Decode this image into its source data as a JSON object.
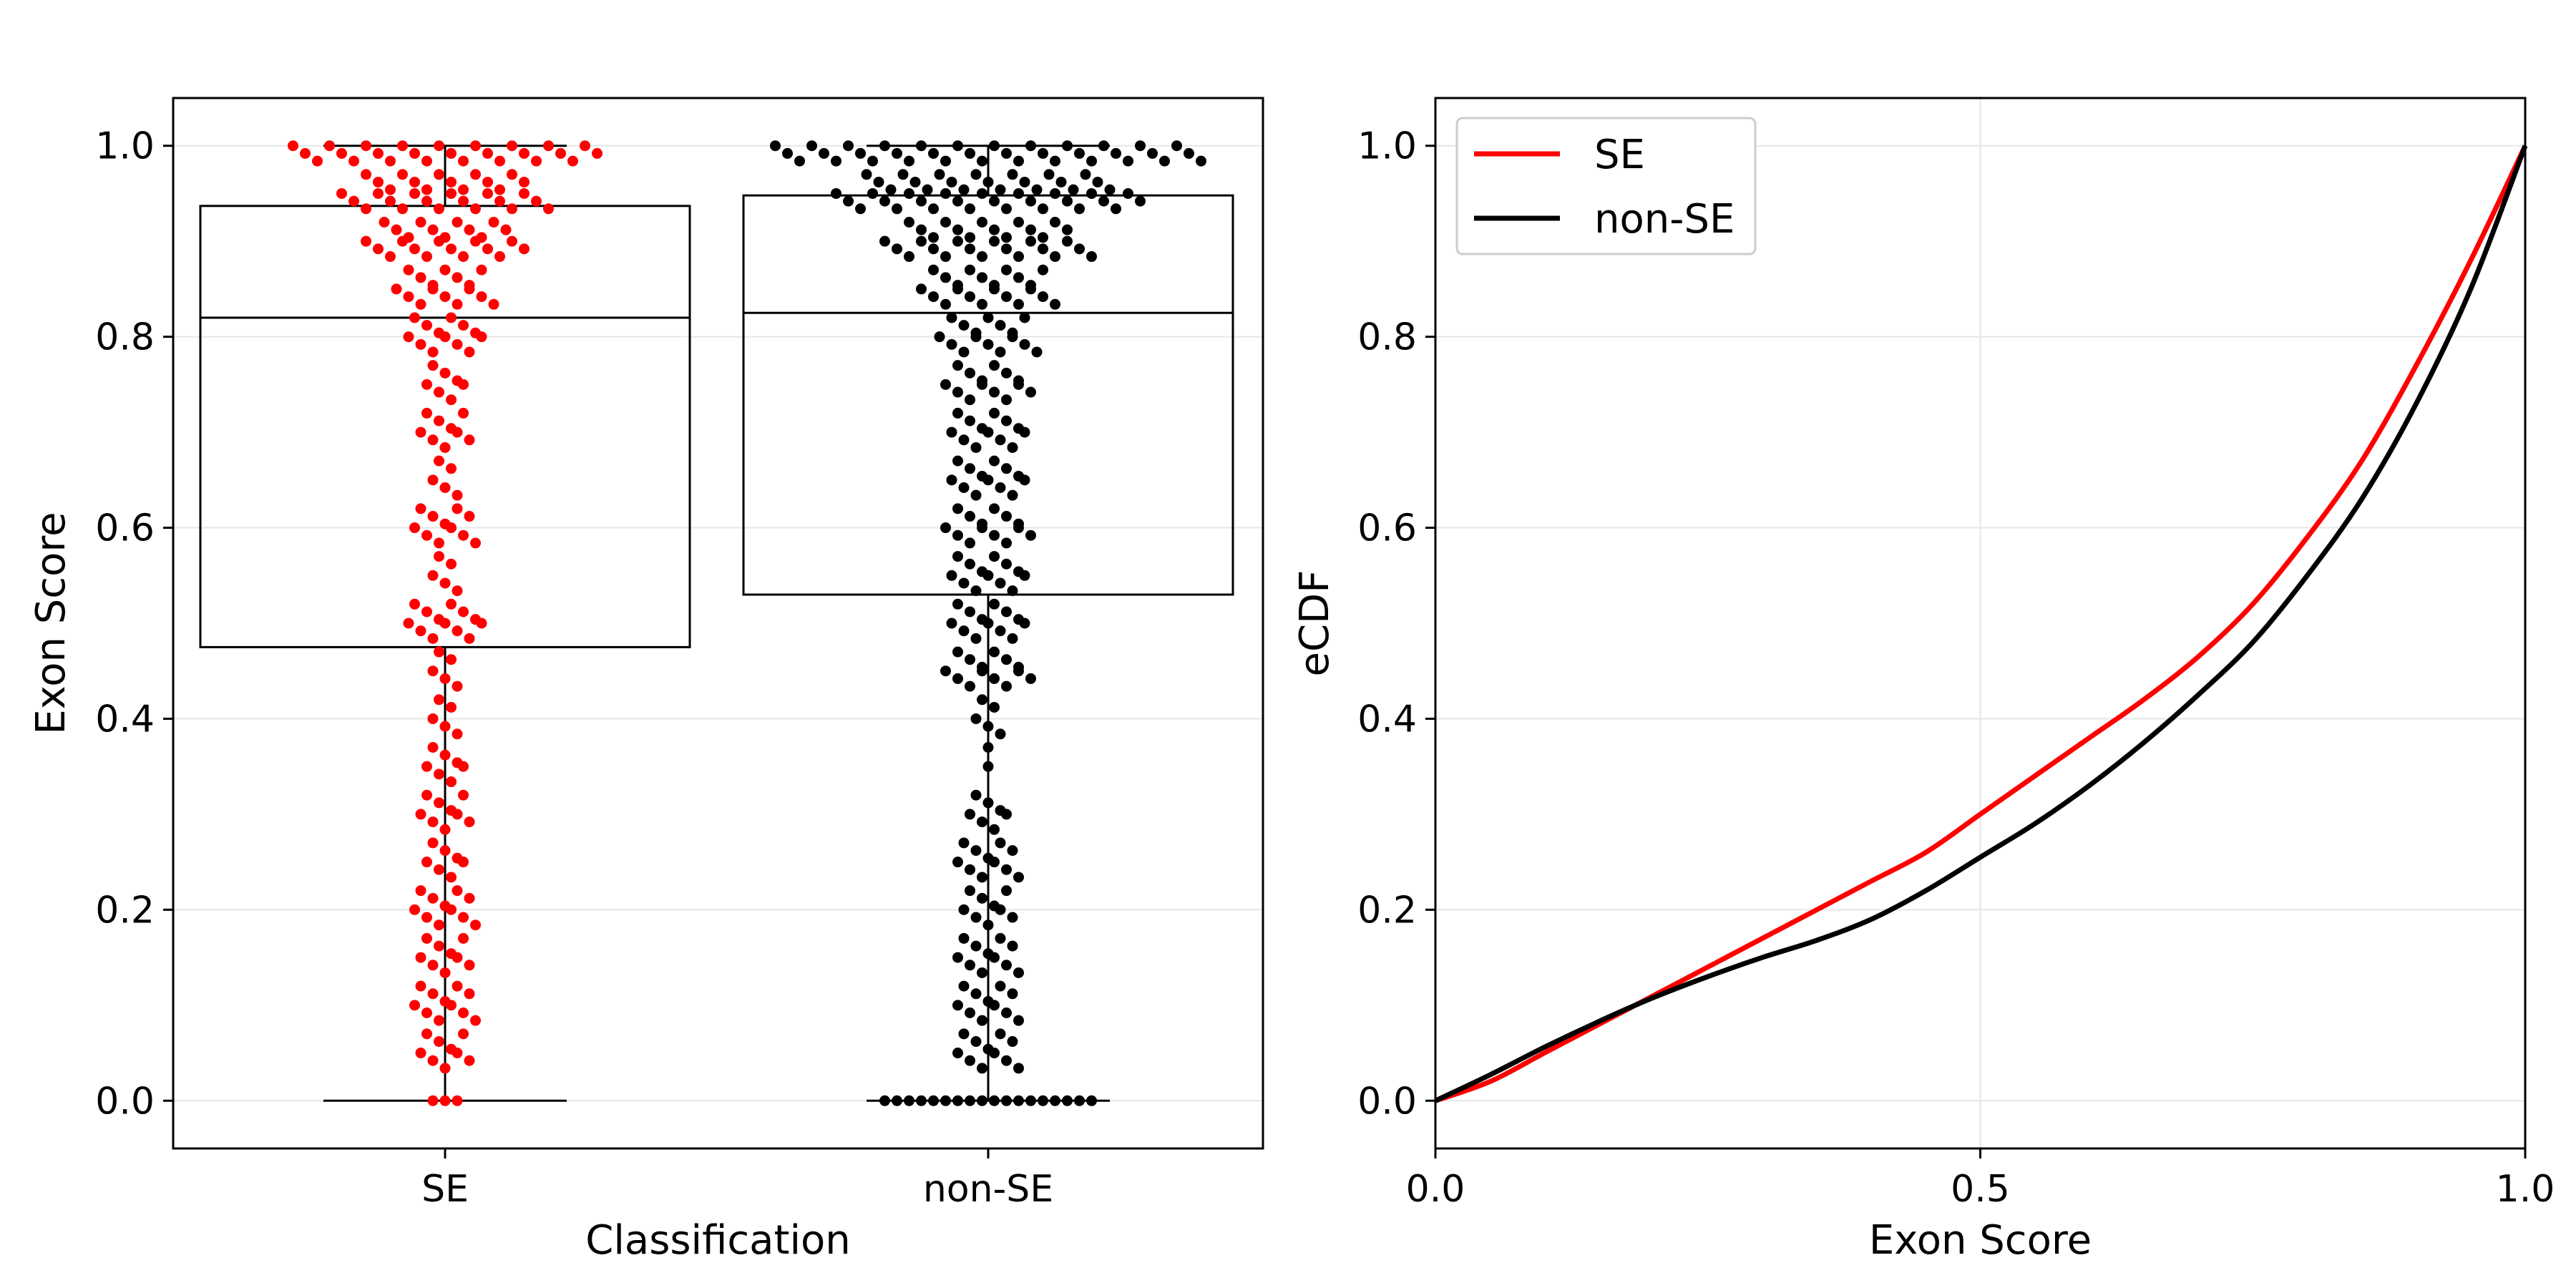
{
  "chart_data": [
    {
      "type": "box+swarm",
      "title": "",
      "xlabel": "Classification",
      "ylabel": "Exon Score",
      "categories": [
        "SE",
        "non-SE"
      ],
      "ylim": [
        -0.05,
        1.05
      ],
      "yticks": [
        "0.0",
        "0.2",
        "0.4",
        "0.6",
        "0.8",
        "1.0"
      ],
      "grid": true,
      "colors": {
        "SE": "#ff0000",
        "non-SE": "#000000"
      },
      "boxes": [
        {
          "name": "SE",
          "min": 0.0,
          "q1": 0.475,
          "median": 0.82,
          "q3": 0.937,
          "max": 1.0
        },
        {
          "name": "non-SE",
          "min": 0.0,
          "q1": 0.53,
          "median": 0.825,
          "q3": 0.948,
          "max": 1.0
        }
      ],
      "swarm_density": {
        "y_levels": [
          0.0,
          0.05,
          0.1,
          0.15,
          0.2,
          0.25,
          0.3,
          0.35,
          0.4,
          0.45,
          0.5,
          0.55,
          0.6,
          0.65,
          0.7,
          0.75,
          0.8,
          0.85,
          0.9,
          0.95,
          1.0
        ],
        "SE_counts": [
          3,
          5,
          6,
          5,
          6,
          4,
          5,
          4,
          3,
          3,
          7,
          3,
          6,
          3,
          5,
          4,
          7,
          9,
          14,
          18,
          26
        ],
        "non-SE_counts": [
          18,
          6,
          6,
          6,
          5,
          6,
          4,
          1,
          3,
          8,
          7,
          7,
          8,
          7,
          7,
          8,
          9,
          12,
          18,
          26,
          36
        ]
      }
    },
    {
      "type": "line",
      "title": "",
      "xlabel": "Exon Score",
      "ylabel": "eCDF",
      "xlim": [
        0.0,
        1.0
      ],
      "ylim": [
        -0.05,
        1.05
      ],
      "xticks": [
        "0.0",
        "0.5",
        "1.0"
      ],
      "yticks": [
        "0.0",
        "0.2",
        "0.4",
        "0.6",
        "0.8",
        "1.0"
      ],
      "grid": true,
      "legend_position": "top-left",
      "x": [
        0.0,
        0.05,
        0.1,
        0.15,
        0.2,
        0.25,
        0.3,
        0.35,
        0.4,
        0.45,
        0.5,
        0.55,
        0.6,
        0.65,
        0.7,
        0.75,
        0.8,
        0.85,
        0.9,
        0.95,
        1.0
      ],
      "series": [
        {
          "name": "SE",
          "color": "#ff0000",
          "values": [
            0.0,
            0.02,
            0.05,
            0.08,
            0.11,
            0.14,
            0.17,
            0.2,
            0.23,
            0.26,
            0.3,
            0.34,
            0.38,
            0.42,
            0.465,
            0.52,
            0.59,
            0.67,
            0.77,
            0.88,
            1.0
          ]
        },
        {
          "name": "non-SE",
          "color": "#000000",
          "values": [
            0.0,
            0.027,
            0.056,
            0.083,
            0.108,
            0.13,
            0.15,
            0.168,
            0.19,
            0.22,
            0.255,
            0.29,
            0.33,
            0.375,
            0.425,
            0.48,
            0.55,
            0.63,
            0.73,
            0.85,
            1.0
          ]
        }
      ]
    }
  ]
}
